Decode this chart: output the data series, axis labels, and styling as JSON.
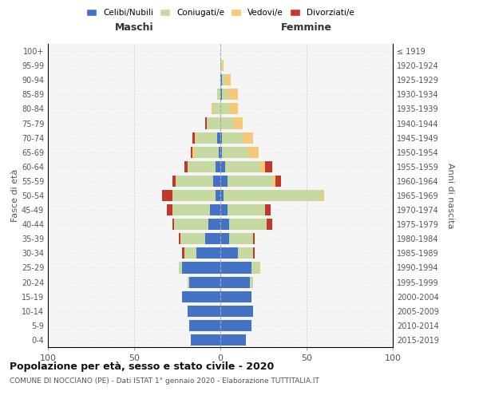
{
  "age_groups": [
    "0-4",
    "5-9",
    "10-14",
    "15-19",
    "20-24",
    "25-29",
    "30-34",
    "35-39",
    "40-44",
    "45-49",
    "50-54",
    "55-59",
    "60-64",
    "65-69",
    "70-74",
    "75-79",
    "80-84",
    "85-89",
    "90-94",
    "95-99",
    "100+"
  ],
  "birth_years": [
    "2015-2019",
    "2010-2014",
    "2005-2009",
    "2000-2004",
    "1995-1999",
    "1990-1994",
    "1985-1989",
    "1980-1984",
    "1975-1979",
    "1970-1974",
    "1965-1969",
    "1960-1964",
    "1955-1959",
    "1950-1954",
    "1945-1949",
    "1940-1944",
    "1935-1939",
    "1930-1934",
    "1925-1929",
    "1920-1924",
    "≤ 1919"
  ],
  "colors": {
    "celibi": "#4472C4",
    "coniugati": "#c5d9a0",
    "vedovi": "#f5c87a",
    "divorziati": "#c0392b"
  },
  "maschi": {
    "celibi": [
      17,
      18,
      19,
      22,
      18,
      22,
      14,
      9,
      7,
      6,
      3,
      4,
      3,
      1,
      2,
      0,
      0,
      0,
      0,
      0,
      0
    ],
    "coniugati": [
      0,
      0,
      0,
      0,
      1,
      2,
      7,
      14,
      20,
      22,
      25,
      22,
      16,
      14,
      12,
      8,
      4,
      2,
      0,
      0,
      0
    ],
    "vedovi": [
      0,
      0,
      0,
      0,
      0,
      0,
      0,
      0,
      0,
      0,
      0,
      0,
      0,
      1,
      1,
      0,
      1,
      0,
      0,
      0,
      0
    ],
    "divorziati": [
      0,
      0,
      0,
      0,
      0,
      0,
      1,
      1,
      1,
      3,
      6,
      2,
      2,
      1,
      1,
      1,
      0,
      0,
      0,
      0,
      0
    ]
  },
  "femmine": {
    "celibi": [
      15,
      18,
      19,
      18,
      17,
      18,
      10,
      5,
      5,
      4,
      2,
      4,
      3,
      1,
      1,
      0,
      0,
      1,
      1,
      0,
      0
    ],
    "coniugati": [
      0,
      0,
      0,
      0,
      2,
      5,
      9,
      14,
      22,
      22,
      57,
      26,
      20,
      15,
      12,
      8,
      5,
      3,
      2,
      1,
      0
    ],
    "vedovi": [
      0,
      0,
      0,
      0,
      0,
      0,
      0,
      0,
      0,
      0,
      1,
      2,
      3,
      6,
      6,
      5,
      5,
      6,
      3,
      1,
      0
    ],
    "divorziati": [
      0,
      0,
      0,
      0,
      0,
      0,
      1,
      1,
      3,
      3,
      0,
      3,
      4,
      0,
      0,
      0,
      0,
      0,
      0,
      0,
      0
    ]
  },
  "xlim": 100,
  "title": "Popolazione per età, sesso e stato civile - 2020",
  "subtitle": "COMUNE DI NOCCIANO (PE) - Dati ISTAT 1° gennaio 2020 - Elaborazione TUTTITALIA.IT",
  "xlabel_left": "Maschi",
  "xlabel_right": "Femmine",
  "ylabel": "Fasce di età",
  "ylabel_right": "Anni di nascita"
}
